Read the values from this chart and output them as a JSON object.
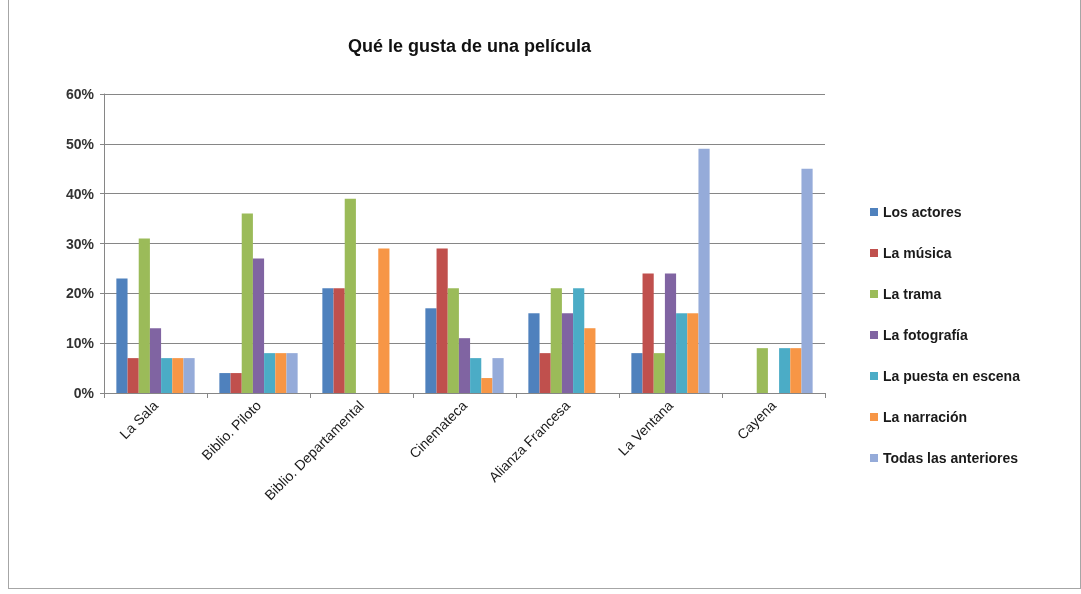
{
  "chart_data": {
    "type": "bar",
    "title": "Qué le gusta de una película",
    "categories": [
      "La Sala",
      "Biblio. Piloto",
      "Biblio. Departamental",
      "Cinemateca",
      "Alianza Francesa",
      "La Ventana",
      "Cayena"
    ],
    "series": [
      {
        "name": "Los actores",
        "color": "#4f81bd",
        "values": [
          23,
          4,
          21,
          17,
          16,
          8,
          null
        ]
      },
      {
        "name": "La música",
        "color": "#c0504d",
        "values": [
          7,
          4,
          21,
          29,
          8,
          24,
          null
        ]
      },
      {
        "name": "La trama",
        "color": "#9bbb59",
        "values": [
          31,
          36,
          39,
          21,
          21,
          8,
          9
        ]
      },
      {
        "name": "La fotografía",
        "color": "#8064a2",
        "values": [
          13,
          27,
          null,
          11,
          16,
          24,
          null
        ]
      },
      {
        "name": "La puesta en escena",
        "color": "#4bacc6",
        "values": [
          7,
          8,
          null,
          7,
          21,
          16,
          9
        ]
      },
      {
        "name": "La narración",
        "color": "#f79646",
        "values": [
          7,
          8,
          29,
          3,
          13,
          16,
          9
        ]
      },
      {
        "name": "Todas las anteriores",
        "color": "#95abd9",
        "values": [
          7,
          8,
          null,
          7,
          null,
          49,
          45
        ]
      }
    ],
    "ylim": [
      0,
      60
    ],
    "yticks": [
      {
        "value": 0,
        "label": "0%"
      },
      {
        "value": 10,
        "label": "10%"
      },
      {
        "value": 20,
        "label": "20%"
      },
      {
        "value": 30,
        "label": "30%"
      },
      {
        "value": 40,
        "label": "40%"
      },
      {
        "value": 50,
        "label": "50%"
      },
      {
        "value": 60,
        "label": "60%"
      }
    ],
    "grid": "y",
    "legend": "right"
  }
}
